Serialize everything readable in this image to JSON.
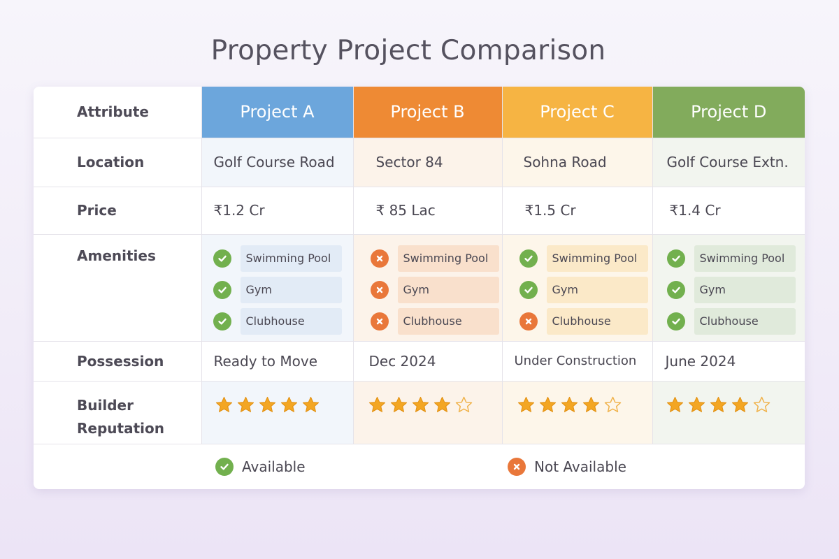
{
  "title": "Property Project Comparison",
  "header": {
    "attribute_label": "Attribute",
    "projects": [
      "Project A",
      "Project B",
      "Project C",
      "Project D"
    ]
  },
  "rows": {
    "location": {
      "label": "Location",
      "values": [
        "Golf Course Road",
        "Sector 84",
        "Sohna Road",
        "Golf Course Extn."
      ]
    },
    "price": {
      "label": "Price",
      "values": [
        "₹1.2 Cr",
        "₹ 85 Lac",
        "₹1.5 Cr",
        "₹1.4 Cr"
      ]
    },
    "amenities": {
      "label": "Amenities",
      "items": [
        "Swimming Pool",
        "Gym",
        "Clubhouse"
      ],
      "availability": [
        [
          true,
          true,
          true
        ],
        [
          false,
          false,
          false
        ],
        [
          true,
          true,
          false
        ],
        [
          true,
          true,
          true
        ]
      ]
    },
    "possession": {
      "label": "Possession",
      "values": [
        "Ready to Move",
        "Dec 2024",
        "Under Construction",
        "June 2024"
      ]
    },
    "builder_reputation": {
      "label_line1": "Builder",
      "label_line2": "Reputation",
      "stars": [
        5,
        4,
        4,
        4
      ],
      "max_stars": 5
    }
  },
  "legend": {
    "available": "Available",
    "not_available": "Not Available"
  },
  "colors": {
    "project_a": "#6ca6dc",
    "project_b": "#ee8a34",
    "project_c": "#f6b443",
    "project_d": "#82ab5c",
    "available": "#72b04e",
    "not_available": "#e9773a",
    "star": "#f3a623"
  },
  "icons": {
    "available": "check-circle-icon",
    "not_available": "x-circle-icon",
    "rating": "star-icon"
  }
}
